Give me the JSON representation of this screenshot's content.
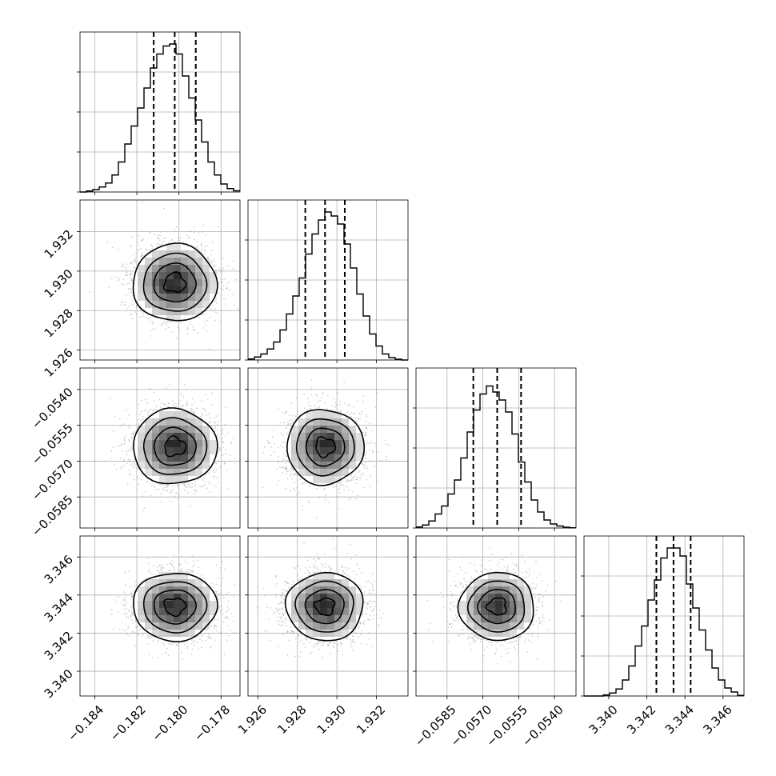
{
  "chart_data": {
    "type": "corner",
    "grid": true,
    "params": [
      {
        "range": [
          -0.1847,
          -0.1771
        ],
        "ticks": [
          -0.184,
          -0.182,
          -0.18,
          -0.178
        ],
        "tick_labels": [
          "−0.184",
          "−0.182",
          "−0.180",
          "−0.178"
        ],
        "quantiles": [
          -0.1812,
          -0.1802,
          -0.1792
        ],
        "hist": [
          0,
          0.5,
          1.2,
          2.5,
          4.5,
          8.5,
          15,
          24,
          33,
          42,
          52,
          62,
          69,
          73,
          74,
          69,
          58,
          47,
          36,
          25,
          15,
          8.5,
          4,
          1.7,
          0.6
        ],
        "hist_yticks": [
          0,
          20,
          40,
          60
        ]
      },
      {
        "range": [
          1.9255,
          1.9336
        ],
        "ticks": [
          1.926,
          1.928,
          1.93,
          1.932
        ],
        "tick_labels": [
          "1.926",
          "1.928",
          "1.930",
          "1.932"
        ],
        "quantiles": [
          1.9284,
          1.9294,
          1.9304
        ],
        "hist": [
          0.5,
          1.5,
          3,
          5.5,
          9,
          15,
          23,
          32,
          41,
          53,
          63,
          70,
          74,
          72,
          68,
          58,
          46,
          33,
          22,
          13,
          7,
          3,
          1.2,
          0.4,
          0
        ],
        "hist_yticks": [
          0,
          20,
          40,
          60
        ]
      },
      {
        "range": [
          -0.0598,
          -0.0531
        ],
        "ticks": [
          -0.0585,
          -0.057,
          -0.0555,
          -0.054
        ],
        "tick_labels": [
          "−0.0585",
          "−0.0570",
          "−0.0555",
          "−0.0540"
        ],
        "quantiles": [
          -0.0574,
          -0.0564,
          -0.0554
        ],
        "hist": [
          0.5,
          1.5,
          3.5,
          7,
          11,
          17,
          24,
          35,
          48,
          59,
          67,
          71,
          68,
          64,
          58,
          47,
          33,
          23,
          14,
          8,
          4,
          2,
          1,
          0.4,
          0.1
        ],
        "hist_yticks": [
          0,
          20,
          40,
          60
        ]
      },
      {
        "range": [
          3.3387,
          3.3471
        ],
        "ticks": [
          3.34,
          3.342,
          3.344,
          3.346
        ],
        "tick_labels": [
          "3.340",
          "3.342",
          "3.344",
          "3.346"
        ],
        "quantiles": [
          3.3425,
          3.3434,
          3.3443
        ],
        "hist": [
          0,
          0,
          0,
          0.5,
          1.5,
          3.5,
          8,
          15,
          25,
          35,
          48,
          58,
          69,
          74,
          74,
          70,
          56,
          44,
          33,
          23,
          14,
          8,
          4,
          2,
          0.3
        ],
        "hist_yticks": [
          0,
          20,
          40,
          60
        ]
      }
    ],
    "pairs": [
      {
        "x": 0,
        "y": 1,
        "center": [
          -0.1802,
          1.9294
        ],
        "spread": [
          0.00095,
          0.00093
        ]
      },
      {
        "x": 0,
        "y": 2,
        "center": [
          -0.1802,
          -0.0564
        ],
        "spread": [
          0.00095,
          0.00075
        ]
      },
      {
        "x": 1,
        "y": 2,
        "center": [
          1.9294,
          -0.0564
        ],
        "spread": [
          0.00093,
          0.00075
        ]
      },
      {
        "x": 0,
        "y": 3,
        "center": [
          -0.1802,
          3.3434
        ],
        "spread": [
          0.00095,
          0.00085
        ]
      },
      {
        "x": 1,
        "y": 3,
        "center": [
          1.9294,
          3.3434
        ],
        "spread": [
          0.00093,
          0.00085
        ]
      },
      {
        "x": 2,
        "y": 3,
        "center": [
          -0.0564,
          3.3434
        ],
        "spread": [
          0.00075,
          0.00085
        ]
      }
    ],
    "contour_levels_sigma": [
      0.5,
      1.0,
      1.5,
      2.0
    ]
  }
}
